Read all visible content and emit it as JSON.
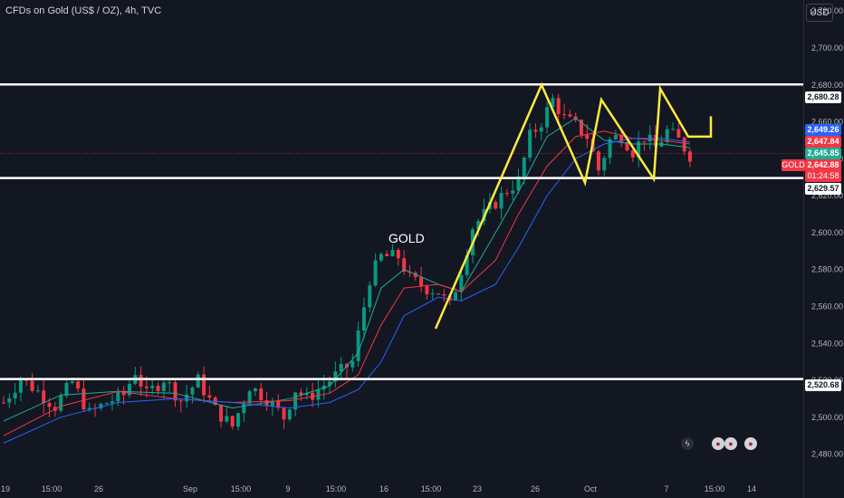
{
  "header": {
    "title": "CFDs on Gold (US$ / OZ), 4h, TVC"
  },
  "currency_button": "USD",
  "annotation_label": "GOLD",
  "price_tags": {
    "level_upper": "2,680.28",
    "ma_blue": "2,649.26",
    "ma_red": "2,647.84",
    "ma_green": "2,645.85",
    "last_price": "2,642.88",
    "countdown": "01:24:58",
    "level_lower": "2,629.57",
    "level_bottom": "2,520.68",
    "symbol": "GOLD"
  },
  "colors": {
    "background": "#131722",
    "up_candle": "#089981",
    "down_candle": "#f23645",
    "ma_green": "#22ab94",
    "ma_red": "#f23645",
    "ma_blue": "#2962ff",
    "drawing_yellow": "#ffeb3b",
    "level_line": "#ffffff"
  },
  "chart_data": {
    "type": "candlestick",
    "symbol": "GOLD",
    "timeframe": "4h",
    "ylim": [
      2470,
      2725
    ],
    "y_ticks": [
      "2,720.00",
      "2,700.00",
      "2,680.00",
      "2,660.00",
      "2,640.00",
      "2,620.00",
      "2,600.00",
      "2,580.00",
      "2,560.00",
      "2,540.00",
      "2,520.00",
      "2,500.00",
      "2,480.00"
    ],
    "x_ticks": [
      "19",
      "15:00",
      "26",
      "Sep",
      "15:00",
      "9",
      "15:00",
      "16",
      "15:00",
      "23",
      "26",
      "Oct",
      "7",
      "15:00",
      "14"
    ],
    "horizontal_levels": [
      2680.28,
      2629.57,
      2520.68
    ],
    "zigzag": [
      [
        17,
        2548
      ],
      [
        27,
        2680
      ],
      [
        29,
        2658
      ],
      [
        32,
        2627
      ],
      [
        34,
        2672
      ],
      [
        37,
        2629
      ],
      [
        39,
        2678
      ],
      [
        42,
        2652
      ]
    ],
    "price_path": [
      [
        0,
        2508
      ],
      [
        3,
        2521
      ],
      [
        6,
        2514
      ],
      [
        9,
        2506
      ],
      [
        12,
        2519
      ],
      [
        15,
        2502
      ],
      [
        18,
        2508
      ],
      [
        21,
        2512
      ],
      [
        23,
        2525
      ],
      [
        25,
        2512
      ],
      [
        28,
        2521
      ],
      [
        31,
        2509
      ],
      [
        34,
        2520
      ],
      [
        37,
        2504
      ],
      [
        40,
        2495
      ],
      [
        43,
        2517
      ],
      [
        46,
        2510
      ],
      [
        49,
        2500
      ],
      [
        51,
        2515
      ],
      [
        53,
        2510
      ],
      [
        55,
        2515
      ],
      [
        57,
        2520
      ],
      [
        59,
        2525
      ],
      [
        61,
        2530
      ],
      [
        62,
        2545
      ],
      [
        64,
        2575
      ],
      [
        66,
        2587
      ],
      [
        69,
        2587
      ],
      [
        71,
        2575
      ],
      [
        74,
        2570
      ],
      [
        76,
        2568
      ],
      [
        78,
        2560
      ],
      [
        80,
        2580
      ],
      [
        82,
        2603
      ],
      [
        85,
        2613
      ],
      [
        88,
        2623
      ],
      [
        90,
        2628
      ],
      [
        92,
        2652
      ],
      [
        94,
        2660
      ],
      [
        96,
        2672
      ],
      [
        98,
        2662
      ],
      [
        100,
        2658
      ],
      [
        102,
        2652
      ],
      [
        104,
        2634
      ],
      [
        106,
        2650
      ],
      [
        108,
        2653
      ],
      [
        110,
        2644
      ],
      [
        112,
        2652
      ],
      [
        114,
        2646
      ],
      [
        116,
        2655
      ],
      [
        118,
        2650
      ],
      [
        120,
        2642
      ]
    ],
    "moving_averages": [
      {
        "name": "MA fast",
        "color": "#22ab94",
        "values": [
          [
            0,
            2498
          ],
          [
            10,
            2512
          ],
          [
            20,
            2514
          ],
          [
            30,
            2513
          ],
          [
            40,
            2505
          ],
          [
            50,
            2510
          ],
          [
            57,
            2517
          ],
          [
            62,
            2535
          ],
          [
            66,
            2570
          ],
          [
            70,
            2580
          ],
          [
            76,
            2572
          ],
          [
            80,
            2568
          ],
          [
            86,
            2600
          ],
          [
            90,
            2622
          ],
          [
            95,
            2652
          ],
          [
            100,
            2662
          ],
          [
            105,
            2650
          ],
          [
            110,
            2648
          ],
          [
            115,
            2648
          ],
          [
            120,
            2646
          ]
        ]
      },
      {
        "name": "MA mid",
        "color": "#f23645",
        "values": [
          [
            0,
            2490
          ],
          [
            10,
            2506
          ],
          [
            20,
            2514
          ],
          [
            30,
            2510
          ],
          [
            40,
            2508
          ],
          [
            50,
            2509
          ],
          [
            57,
            2513
          ],
          [
            62,
            2523
          ],
          [
            66,
            2550
          ],
          [
            70,
            2570
          ],
          [
            76,
            2572
          ],
          [
            80,
            2568
          ],
          [
            86,
            2585
          ],
          [
            90,
            2610
          ],
          [
            95,
            2636
          ],
          [
            100,
            2652
          ],
          [
            105,
            2655
          ],
          [
            110,
            2651
          ],
          [
            115,
            2650
          ],
          [
            120,
            2648
          ]
        ]
      },
      {
        "name": "MA slow",
        "color": "#2962ff",
        "values": [
          [
            0,
            2486
          ],
          [
            10,
            2500
          ],
          [
            20,
            2508
          ],
          [
            30,
            2510
          ],
          [
            40,
            2508
          ],
          [
            50,
            2505
          ],
          [
            57,
            2508
          ],
          [
            62,
            2515
          ],
          [
            66,
            2530
          ],
          [
            70,
            2555
          ],
          [
            76,
            2565
          ],
          [
            80,
            2563
          ],
          [
            86,
            2572
          ],
          [
            90,
            2592
          ],
          [
            95,
            2620
          ],
          [
            100,
            2640
          ],
          [
            105,
            2648
          ],
          [
            110,
            2651
          ],
          [
            115,
            2651
          ],
          [
            120,
            2649
          ]
        ]
      }
    ]
  }
}
